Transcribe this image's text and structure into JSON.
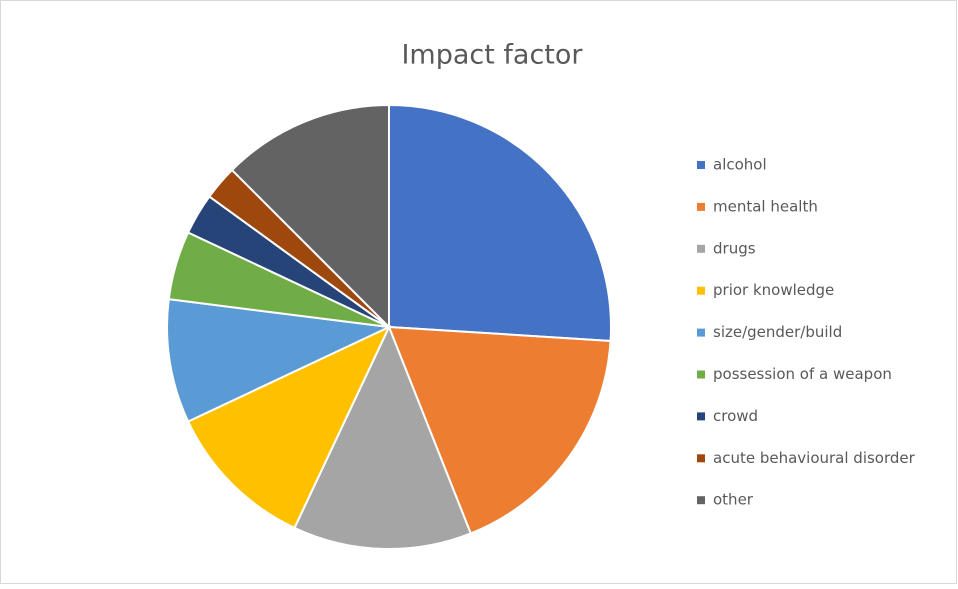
{
  "chart_data": {
    "type": "pie",
    "title": "Impact factor",
    "categories": [
      "alcohol",
      "mental health",
      "drugs",
      "prior knowledge",
      "size/gender/build",
      "possession of a weapon",
      "crowd",
      "acute behavioural disorder",
      "other"
    ],
    "values": [
      26,
      18,
      13,
      11,
      9,
      5,
      3,
      2.5,
      12.5
    ],
    "colors": [
      "#4472c4",
      "#ed7d31",
      "#a5a5a5",
      "#ffc000",
      "#5b9bd5",
      "#70ad47",
      "#264478",
      "#9e480e",
      "#636363"
    ],
    "legend": "right"
  }
}
